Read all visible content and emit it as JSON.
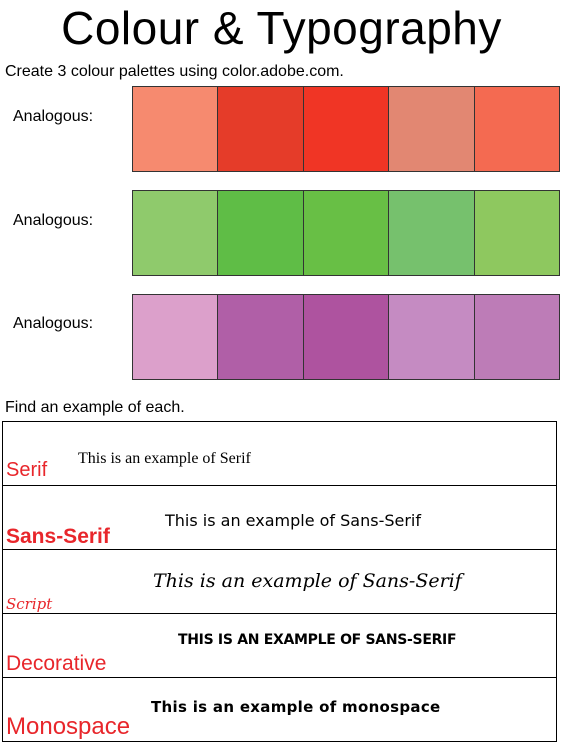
{
  "title": "Colour & Typography",
  "colour_section": {
    "instruction": "Create 3 colour palettes using color.adobe.com.",
    "palettes": [
      {
        "label": "Analogous:",
        "swatches": [
          "#f68a6f",
          "#e53c29",
          "#f03525",
          "#e28772",
          "#f46a51"
        ]
      },
      {
        "label": "Analogous:",
        "swatches": [
          "#8fca6c",
          "#5fbd46",
          "#68bf45",
          "#76c16d",
          "#8ec85f"
        ]
      },
      {
        "label": "Analogous:",
        "swatches": [
          "#dca0cb",
          "#b05fa7",
          "#ae539f",
          "#c58bc2",
          "#bd7cb7"
        ]
      }
    ]
  },
  "typography_section": {
    "instruction": "Find an example of each.",
    "label_color": "#e8262b",
    "rows": [
      {
        "label": "Serif",
        "sample": "This is an example of Serif"
      },
      {
        "label": "Sans-Serif",
        "sample": "This is an example of Sans-Serif"
      },
      {
        "label": "Script",
        "sample": "This is an example of Sans-Serif"
      },
      {
        "label": "Decorative",
        "sample": "THIS IS AN EXAMPLE OF SANS-SERIF"
      },
      {
        "label": "Monospace",
        "sample": "This is an example of monospace"
      }
    ]
  }
}
